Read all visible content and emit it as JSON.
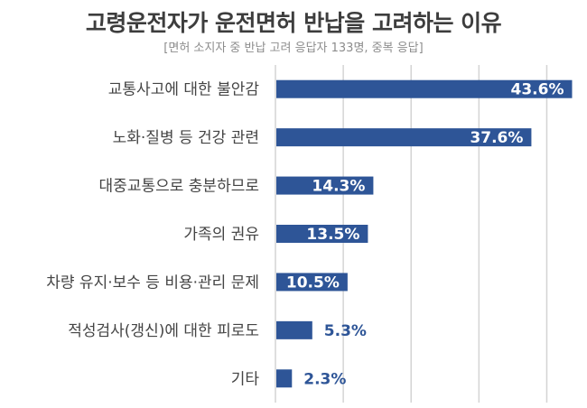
{
  "colors": {
    "bar": "#2e5597",
    "grid": "#d4d4d4",
    "label_outside": "#2e5597",
    "label_inside": "#ffffff"
  },
  "chart_data": {
    "type": "bar",
    "orientation": "horizontal",
    "title": "고령운전자가 운전면허 반납을 고려하는 이유",
    "subtitle": "[면허 소지자 중 반납 고려 응답자 133명, 중복 응답]",
    "categories": [
      "교통사고에 대한 불안감",
      "노화·질병 등 건강 관련",
      "대중교통으로 충분하므로",
      "가족의 권유",
      "차량 유지·보수 등 비용·관리 문제",
      "적성검사(갱신)에 대한 피로도",
      "기타"
    ],
    "values": [
      43.6,
      37.6,
      14.3,
      13.5,
      10.5,
      5.3,
      2.3
    ],
    "value_labels": [
      "43.6%",
      "37.6%",
      "14.3%",
      "13.5%",
      "10.5%",
      "5.3%",
      "2.3%"
    ],
    "xlim": [
      0,
      45
    ],
    "grid": true
  }
}
